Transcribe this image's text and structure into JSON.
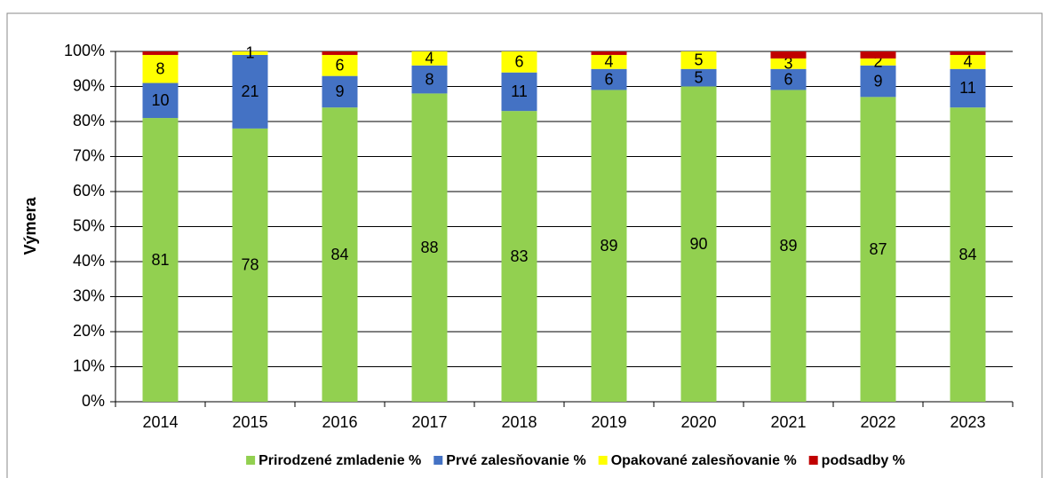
{
  "chart_data": {
    "type": "stacked_bar",
    "y_label": "Výmera",
    "categories": [
      "2014",
      "2015",
      "2016",
      "2017",
      "2018",
      "2019",
      "2020",
      "2021",
      "2022",
      "2023"
    ],
    "series": [
      {
        "name": "Prirodzené zmladenie %",
        "color": "#92d050",
        "show_labels": true,
        "values": [
          81,
          78,
          84,
          88,
          83,
          89,
          90,
          89,
          87,
          84
        ]
      },
      {
        "name": "Prvé zalesňovanie %",
        "color": "#4472c4",
        "show_labels": true,
        "values": [
          10,
          21,
          9,
          8,
          11,
          6,
          5,
          6,
          9,
          11
        ]
      },
      {
        "name": "Opakované zalesňovanie %",
        "color": "#ffff00",
        "show_labels": true,
        "values": [
          8,
          1,
          6,
          4,
          6,
          4,
          5,
          3,
          2,
          4
        ]
      },
      {
        "name": "podsadby %",
        "color": "#c00000",
        "show_labels": false,
        "values": [
          1,
          0,
          1,
          0,
          0,
          1,
          0,
          2,
          2,
          1
        ]
      }
    ],
    "ylim": [
      0,
      100
    ],
    "yticks": [
      {
        "value": 0,
        "label": "0%"
      },
      {
        "value": 10,
        "label": "10%"
      },
      {
        "value": 20,
        "label": "20%"
      },
      {
        "value": 30,
        "label": "30%"
      },
      {
        "value": 40,
        "label": "40%"
      },
      {
        "value": 50,
        "label": "50%"
      },
      {
        "value": 60,
        "label": "60%"
      },
      {
        "value": 70,
        "label": "70%"
      },
      {
        "value": 80,
        "label": "80%"
      },
      {
        "value": 90,
        "label": "90%"
      },
      {
        "value": 100,
        "label": "100%"
      }
    ],
    "grid": true,
    "legend": "bottom"
  }
}
